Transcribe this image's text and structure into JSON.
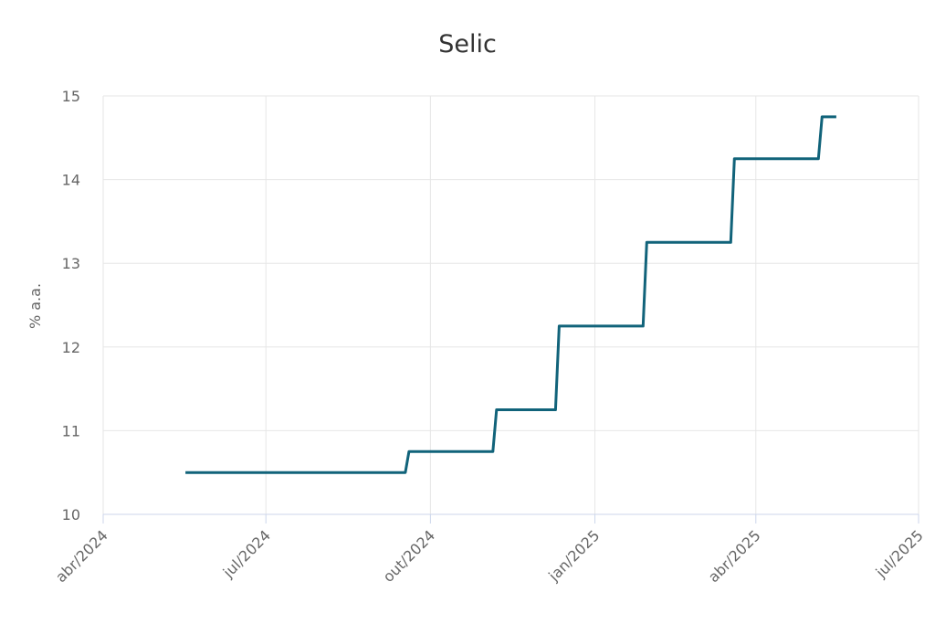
{
  "chart_data": {
    "type": "line",
    "step": true,
    "title": "Selic",
    "xlabel": "",
    "ylabel": "% a.a.",
    "ylim": [
      10,
      15
    ],
    "yticks": [
      10,
      11,
      12,
      13,
      14,
      15
    ],
    "xlim": [
      "2024-04-01",
      "2025-07-01"
    ],
    "xticks": [
      {
        "date": "2024-04-01",
        "label": "abr/2024"
      },
      {
        "date": "2024-07-01",
        "label": "jul/2024"
      },
      {
        "date": "2024-10-01",
        "label": "out/2024"
      },
      {
        "date": "2025-01-01",
        "label": "jan/2025"
      },
      {
        "date": "2025-04-01",
        "label": "abr/2025"
      },
      {
        "date": "2025-07-01",
        "label": "jul/2025"
      }
    ],
    "grid": true,
    "legend": "none",
    "series": [
      {
        "color": "#11637a",
        "points": [
          {
            "x": "2024-05-17",
            "y": 10.5
          },
          {
            "x": "2024-09-19",
            "y": 10.75
          },
          {
            "x": "2024-11-07",
            "y": 11.25
          },
          {
            "x": "2024-12-12",
            "y": 12.25
          },
          {
            "x": "2025-01-30",
            "y": 13.25
          },
          {
            "x": "2025-03-20",
            "y": 14.25
          },
          {
            "x": "2025-05-08",
            "y": 14.75
          },
          {
            "x": "2025-05-16",
            "y": 14.75
          }
        ]
      }
    ]
  }
}
